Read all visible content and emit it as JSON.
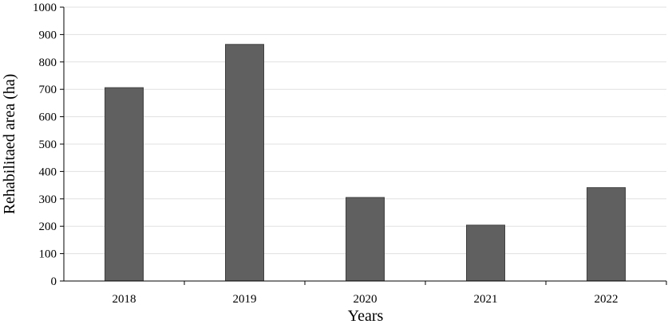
{
  "chart_data": {
    "type": "bar",
    "title": "",
    "xlabel": "Years",
    "ylabel": "Rehabilitaed area (ha)",
    "categories": [
      "2018",
      "2019",
      "2020",
      "2021",
      "2022"
    ],
    "values": [
      706,
      864,
      305,
      204,
      341
    ],
    "ylim": [
      0,
      1000
    ],
    "yticks": [
      0,
      100,
      200,
      300,
      400,
      500,
      600,
      700,
      800,
      900,
      1000
    ],
    "ytick_labels": [
      "0",
      "100",
      "200",
      "300",
      "400",
      "500",
      "600",
      "700",
      "800",
      "900",
      "1000"
    ],
    "grid": "horizontal",
    "legend": "none",
    "bar_color": "#606060",
    "bar_edge_color": "#404040",
    "grid_color": "#e0e0e0",
    "axis_color": "#000000"
  }
}
